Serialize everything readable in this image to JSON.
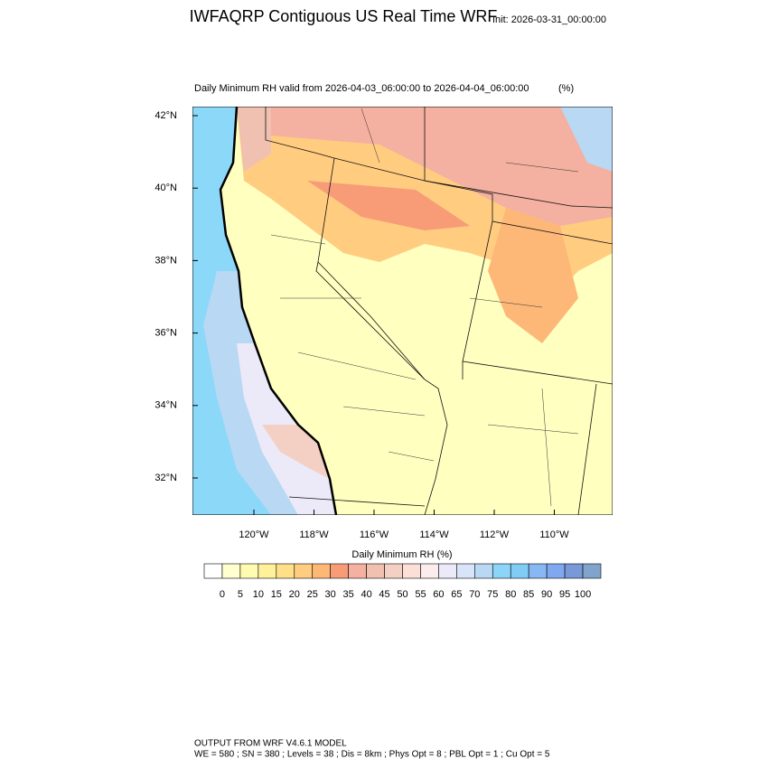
{
  "header": {
    "title": "IWFAQRP Contiguous US Real Time WRF",
    "init": "Init: 2026-03-31_00:00:00"
  },
  "map": {
    "subtitle": "Daily Minimum RH valid from 2026-04-03_06:00:00 to 2026-04-04_06:00:00",
    "units": "(%)",
    "lat_labels": [
      "42°N",
      "40°N",
      "38°N",
      "36°N",
      "34°N",
      "32°N"
    ],
    "lon_labels": [
      "120°W",
      "118°W",
      "116°W",
      "114°W",
      "112°W",
      "110°W"
    ]
  },
  "colorbar": {
    "title": "Daily Minimum RH  (%)",
    "labels": [
      0,
      5,
      10,
      15,
      20,
      25,
      30,
      35,
      40,
      45,
      50,
      55,
      60,
      65,
      70,
      75,
      80,
      85,
      90,
      95,
      100
    ],
    "colors": [
      "#ffffff",
      "#ffffd0",
      "#fffbb0",
      "#fff09a",
      "#ffe088",
      "#ffcc80",
      "#fdb878",
      "#f89c78",
      "#f4b0a0",
      "#f0c0b0",
      "#f4d0c4",
      "#fce0d8",
      "#fcecec",
      "#eceaf8",
      "#d8e4f8",
      "#b8d8f4",
      "#8cd4f8",
      "#80ccf4",
      "#88b8f4",
      "#80a8f0",
      "#7898d8",
      "#80a4cc"
    ]
  },
  "footer": {
    "line1": "OUTPUT FROM WRF V4.6.1 MODEL",
    "line2": "WE = 580 ; SN = 380 ; Levels = 38 ; Dis = 8km ; Phys Opt = 8 ; PBL Opt = 1 ; Cu Opt = 5"
  }
}
